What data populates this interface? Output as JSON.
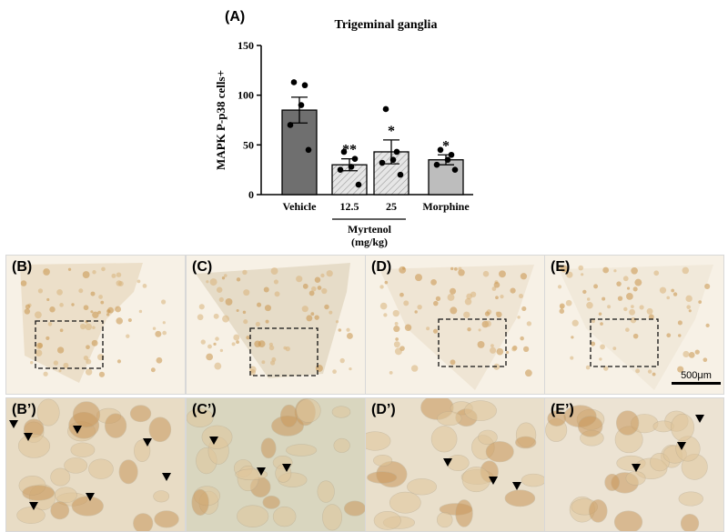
{
  "figure": {
    "panel_a_label": "(A)",
    "chart_title": "Trigeminal ganglia",
    "group_title": "Myrtenol",
    "group_unit": "(mg/kg)",
    "scale_label": "500μm"
  },
  "chart_data": {
    "type": "bar",
    "title": "Trigeminal ganglia",
    "ylabel": "MAPK P-p38 cells+",
    "xlabel": "",
    "ylim": [
      0,
      150
    ],
    "yticks": [
      0,
      50,
      100,
      150
    ],
    "categories": [
      "Vehicle",
      "12.5",
      "25",
      "Morphine"
    ],
    "values": [
      85,
      30,
      43,
      35
    ],
    "errors": [
      13,
      6,
      12,
      5
    ],
    "significance": [
      "",
      "**",
      "*",
      "*"
    ],
    "points": [
      [
        113,
        110,
        90,
        70,
        45
      ],
      [
        43,
        36,
        28,
        25,
        10
      ],
      [
        86,
        43,
        35,
        32,
        20
      ],
      [
        45,
        40,
        35,
        30,
        25
      ]
    ],
    "bar_colors": [
      "#6f6f6f",
      "#e0e0e0",
      "#e0e0e0",
      "#bdbdbd"
    ],
    "bar_hatch": [
      false,
      true,
      true,
      false
    ]
  },
  "micrographs": {
    "overview": [
      {
        "label": "(B)",
        "tint": "#ecdfc9"
      },
      {
        "label": "(C)",
        "tint": "#e6dcc8"
      },
      {
        "label": "(D)",
        "tint": "#efe5d4"
      },
      {
        "label": "(E)",
        "tint": "#f1e9da"
      }
    ],
    "zoom": [
      {
        "label": "(B’)",
        "tint": "#e8dcc5"
      },
      {
        "label": "(C’)",
        "tint": "#d9d6bf"
      },
      {
        "label": "(D’)",
        "tint": "#e9dfcb"
      },
      {
        "label": "(E’)",
        "tint": "#ece3d3"
      }
    ]
  }
}
